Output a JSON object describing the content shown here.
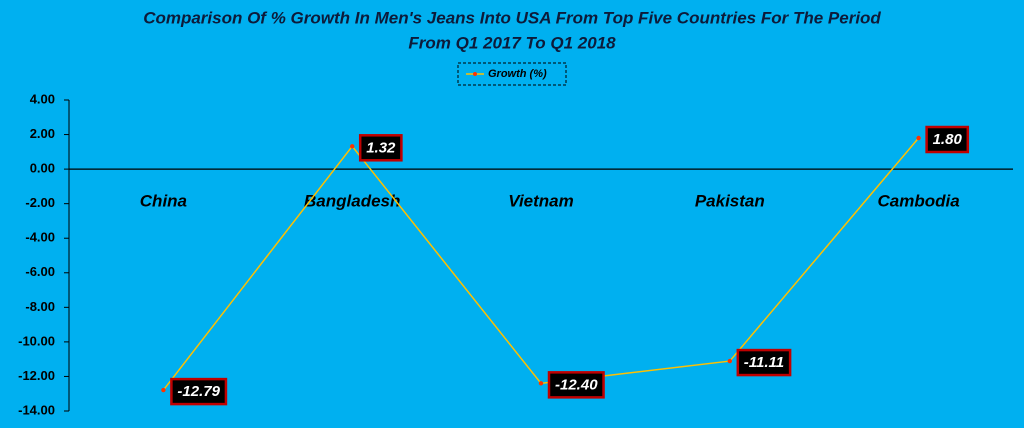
{
  "chart_data": {
    "type": "line",
    "title": [
      "Comparison Of % Growth In Men's Jeans Into USA From Top Five Countries For The Period",
      "From Q1 2017 To Q1 2018"
    ],
    "categories": [
      "China",
      "Bangladesh",
      "Vietnam",
      "Pakistan",
      "Cambodia"
    ],
    "series": [
      {
        "name": "Growth (%)",
        "color": "#ffc000",
        "marker_color": "#ff3300",
        "values": [
          -12.79,
          1.32,
          -12.4,
          -11.11,
          1.8
        ],
        "value_labels": [
          "-12.79",
          "1.32",
          "-12.40",
          "-11.11",
          "1.80"
        ]
      }
    ],
    "ylim": [
      -14,
      4
    ],
    "yticks": [
      {
        "value": 4,
        "label": "4.00"
      },
      {
        "value": 2,
        "label": "2.00"
      },
      {
        "value": 0,
        "label": "0.00"
      },
      {
        "value": -2,
        "label": "-2.00"
      },
      {
        "value": -4,
        "label": "-4.00"
      },
      {
        "value": -6,
        "label": "-6.00"
      },
      {
        "value": -8,
        "label": "-8.00"
      },
      {
        "value": -10,
        "label": "-10.00"
      },
      {
        "value": -12,
        "label": "-12.00"
      },
      {
        "value": -14,
        "label": "-14.00"
      }
    ],
    "grid": false,
    "legend": "top"
  }
}
